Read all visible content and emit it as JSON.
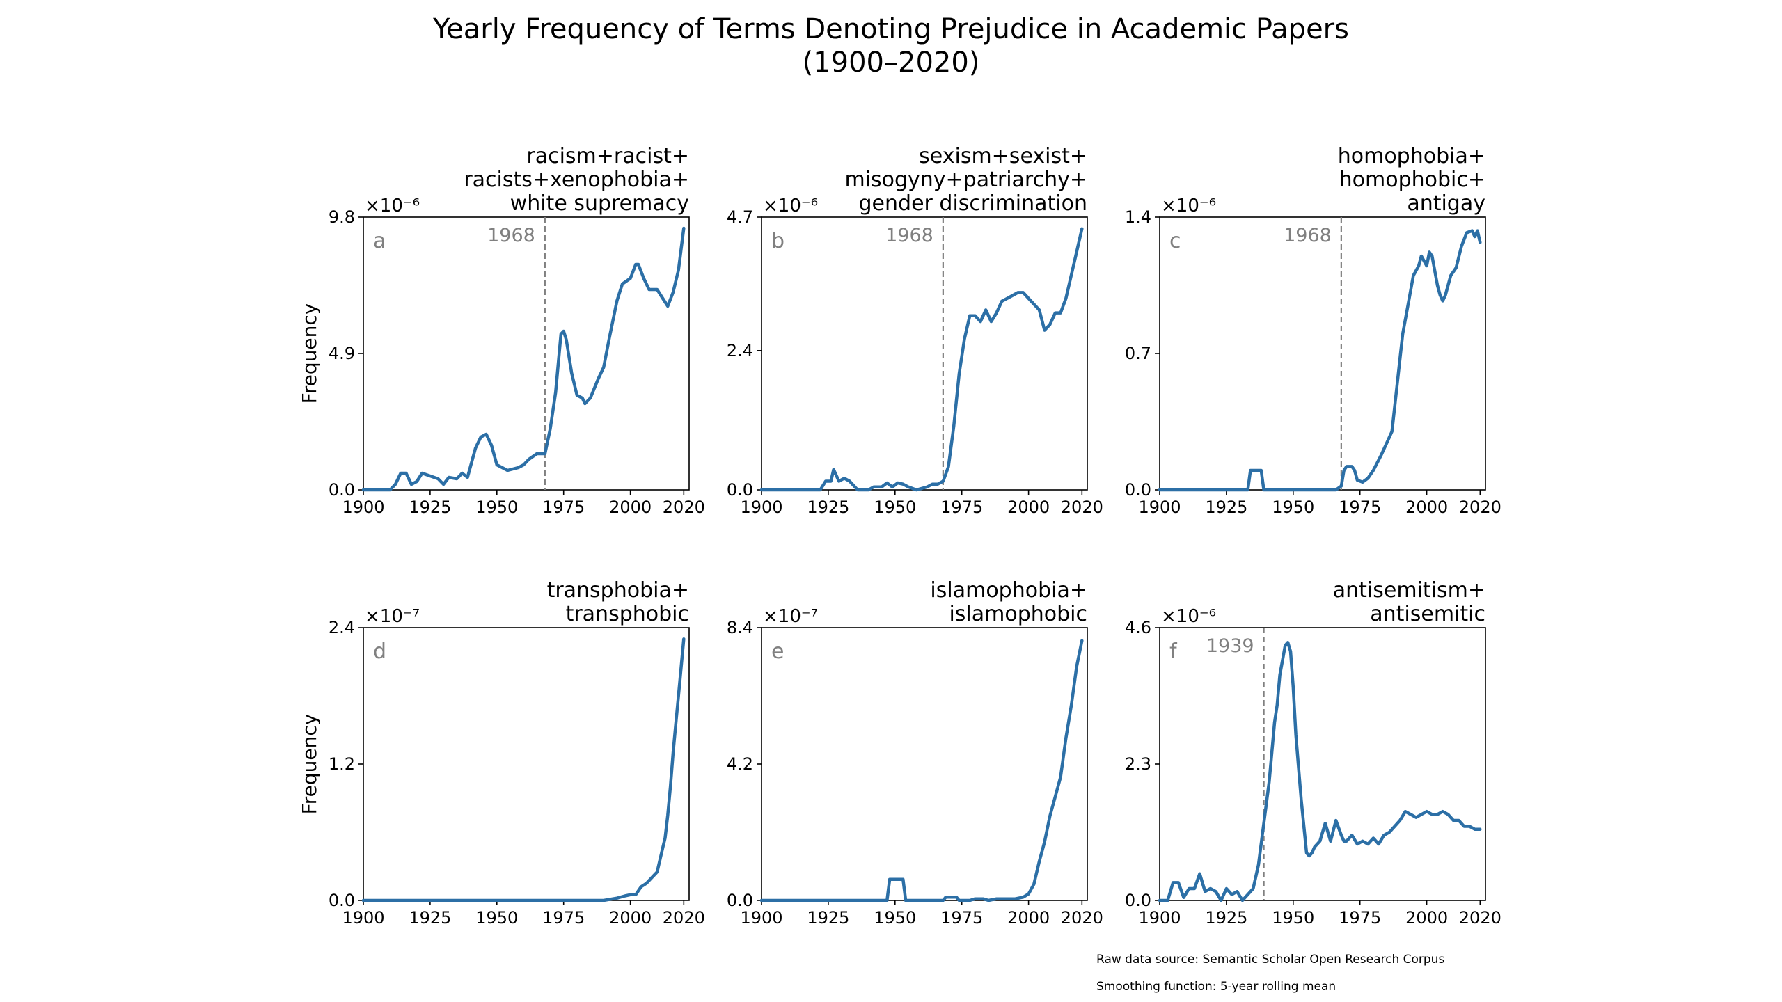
{
  "figure": {
    "title_line1": "Yearly Frequency of Terms Denoting Prejudice in Academic Papers",
    "title_line2": "(1900–2020)",
    "footnote_source": "Raw data source: Semantic Scholar Open Research Corpus",
    "footnote_smoothing": "Smoothing function: 5-year rolling mean"
  },
  "colors": {
    "series": "#2c6fa6",
    "axis": "#000000",
    "annotation": "#808080"
  },
  "chart_data": [
    {
      "type": "line",
      "panel_letter": "a",
      "title_lines": [
        "racism+racist+",
        "racists+xenophobia+",
        "white supremacy"
      ],
      "ylabel": "Frequency",
      "offset_text": "×10⁻⁶",
      "xlim": [
        1900,
        2022
      ],
      "ylim": [
        0,
        9.8
      ],
      "xticks": [
        "1900",
        "1925",
        "1950",
        "1975",
        "2000",
        "2020"
      ],
      "yticks": [
        "0.0",
        "4.9",
        "9.8"
      ],
      "vline": {
        "x": 1968,
        "label": "1968"
      },
      "series": [
        {
          "x": [
            1900,
            1910,
            1912,
            1914,
            1916,
            1918,
            1920,
            1922,
            1925,
            1928,
            1930,
            1932,
            1935,
            1937,
            1939,
            1942,
            1944,
            1946,
            1948,
            1950,
            1952,
            1954,
            1956,
            1958,
            1960,
            1962,
            1965,
            1968,
            1970,
            1972,
            1974,
            1975,
            1976,
            1978,
            1980,
            1982,
            1983,
            1985,
            1988,
            1990,
            1992,
            1995,
            1997,
            2000,
            2002,
            2003,
            2005,
            2007,
            2010,
            2012,
            2014,
            2016,
            2018,
            2020
          ],
          "y": [
            0.0,
            0.0,
            0.2,
            0.6,
            0.6,
            0.2,
            0.3,
            0.6,
            0.5,
            0.4,
            0.2,
            0.45,
            0.4,
            0.6,
            0.45,
            1.5,
            1.9,
            2.0,
            1.6,
            0.9,
            0.8,
            0.7,
            0.75,
            0.8,
            0.9,
            1.1,
            1.3,
            1.3,
            2.2,
            3.5,
            5.6,
            5.7,
            5.4,
            4.2,
            3.4,
            3.3,
            3.1,
            3.3,
            4.0,
            4.4,
            5.4,
            6.8,
            7.4,
            7.6,
            8.1,
            8.1,
            7.6,
            7.2,
            7.2,
            6.9,
            6.6,
            7.1,
            7.9,
            9.4
          ]
        }
      ]
    },
    {
      "type": "line",
      "panel_letter": "b",
      "title_lines": [
        "sexism+sexist+",
        "misogyny+patriarchy+",
        "gender discrimination"
      ],
      "ylabel": "",
      "offset_text": "×10⁻⁶",
      "xlim": [
        1900,
        2022
      ],
      "ylim": [
        0,
        4.7
      ],
      "xticks": [
        "1900",
        "1925",
        "1950",
        "1975",
        "2000",
        "2020"
      ],
      "yticks": [
        "0.0",
        "2.4",
        "4.7"
      ],
      "vline": {
        "x": 1968,
        "label": "1968"
      },
      "series": [
        {
          "x": [
            1900,
            1922,
            1924,
            1926,
            1927,
            1929,
            1931,
            1933,
            1936,
            1940,
            1942,
            1945,
            1947,
            1949,
            1951,
            1953,
            1955,
            1958,
            1962,
            1964,
            1966,
            1968,
            1970,
            1972,
            1974,
            1976,
            1978,
            1980,
            1982,
            1984,
            1986,
            1988,
            1990,
            1992,
            1994,
            1996,
            1998,
            2000,
            2002,
            2004,
            2006,
            2008,
            2010,
            2012,
            2014,
            2016,
            2018,
            2020
          ],
          "y": [
            0.0,
            0.0,
            0.15,
            0.15,
            0.35,
            0.15,
            0.2,
            0.15,
            0.0,
            0.0,
            0.05,
            0.05,
            0.12,
            0.05,
            0.12,
            0.1,
            0.05,
            0.0,
            0.05,
            0.1,
            0.1,
            0.15,
            0.4,
            1.1,
            2.0,
            2.6,
            3.0,
            3.0,
            2.9,
            3.1,
            2.9,
            3.05,
            3.25,
            3.3,
            3.35,
            3.4,
            3.4,
            3.3,
            3.2,
            3.1,
            2.75,
            2.85,
            3.05,
            3.05,
            3.3,
            3.7,
            4.1,
            4.5
          ]
        }
      ]
    },
    {
      "type": "line",
      "panel_letter": "c",
      "title_lines": [
        "homophobia+",
        "homophobic+",
        "antigay"
      ],
      "ylabel": "",
      "offset_text": "×10⁻⁶",
      "xlim": [
        1900,
        2022
      ],
      "ylim": [
        0,
        1.4
      ],
      "xticks": [
        "1900",
        "1925",
        "1950",
        "1975",
        "2000",
        "2020"
      ],
      "yticks": [
        "0.0",
        "0.7",
        "1.4"
      ],
      "vline": {
        "x": 1968,
        "label": "1968"
      },
      "series": [
        {
          "x": [
            1900,
            1933,
            1934,
            1938,
            1939,
            1960,
            1966,
            1968,
            1969,
            1970,
            1972,
            1973,
            1974,
            1976,
            1978,
            1980,
            1983,
            1985,
            1987,
            1989,
            1991,
            1993,
            1995,
            1997,
            1998,
            2000,
            2001,
            2002,
            2004,
            2005,
            2006,
            2007,
            2009,
            2011,
            2013,
            2015,
            2017,
            2018,
            2019,
            2020
          ],
          "y": [
            0.0,
            0.0,
            0.1,
            0.1,
            0.0,
            0.0,
            0.0,
            0.02,
            0.1,
            0.12,
            0.12,
            0.1,
            0.05,
            0.04,
            0.06,
            0.1,
            0.18,
            0.24,
            0.3,
            0.55,
            0.8,
            0.95,
            1.1,
            1.15,
            1.2,
            1.15,
            1.22,
            1.2,
            1.05,
            1.0,
            0.97,
            1.0,
            1.1,
            1.14,
            1.25,
            1.32,
            1.33,
            1.3,
            1.33,
            1.27
          ]
        }
      ]
    },
    {
      "type": "line",
      "panel_letter": "d",
      "title_lines": [
        "transphobia+",
        "transphobic"
      ],
      "ylabel": "Frequency",
      "offset_text": "×10⁻⁷",
      "xlim": [
        1900,
        2022
      ],
      "ylim": [
        0,
        2.4
      ],
      "xticks": [
        "1900",
        "1925",
        "1950",
        "1975",
        "2000",
        "2020"
      ],
      "yticks": [
        "0.0",
        "1.2",
        "2.4"
      ],
      "vline": null,
      "series": [
        {
          "x": [
            1900,
            1990,
            1995,
            1998,
            2000,
            2002,
            2004,
            2006,
            2008,
            2010,
            2012,
            2013,
            2014,
            2015,
            2016,
            2017,
            2018,
            2019,
            2020
          ],
          "y": [
            0.0,
            0.0,
            0.02,
            0.04,
            0.05,
            0.05,
            0.12,
            0.15,
            0.2,
            0.25,
            0.45,
            0.55,
            0.75,
            1.0,
            1.3,
            1.55,
            1.8,
            2.05,
            2.3
          ]
        }
      ]
    },
    {
      "type": "line",
      "panel_letter": "e",
      "title_lines": [
        "islamophobia+",
        "islamophobic"
      ],
      "ylabel": "",
      "offset_text": "×10⁻⁷",
      "xlim": [
        1900,
        2022
      ],
      "ylim": [
        0,
        8.4
      ],
      "xticks": [
        "1900",
        "1925",
        "1950",
        "1975",
        "2000",
        "2020"
      ],
      "yticks": [
        "0.0",
        "4.2",
        "8.4"
      ],
      "vline": null,
      "series": [
        {
          "x": [
            1900,
            1947,
            1948,
            1953,
            1954,
            1968,
            1969,
            1973,
            1974,
            1978,
            1980,
            1983,
            1985,
            1988,
            1990,
            1995,
            1998,
            2000,
            2002,
            2004,
            2006,
            2008,
            2010,
            2012,
            2014,
            2016,
            2018,
            2019,
            2020
          ],
          "y": [
            0.0,
            0.0,
            0.65,
            0.65,
            0.0,
            0.0,
            0.1,
            0.1,
            0.0,
            0.0,
            0.05,
            0.05,
            0.0,
            0.05,
            0.05,
            0.05,
            0.1,
            0.2,
            0.5,
            1.2,
            1.8,
            2.6,
            3.2,
            3.8,
            5.0,
            6.0,
            7.2,
            7.6,
            8.0
          ]
        }
      ]
    },
    {
      "type": "line",
      "panel_letter": "f",
      "title_lines": [
        "antisemitism+",
        "antisemitic"
      ],
      "ylabel": "",
      "offset_text": "×10⁻⁶",
      "xlim": [
        1900,
        2022
      ],
      "ylim": [
        0,
        4.6
      ],
      "xticks": [
        "1900",
        "1925",
        "1950",
        "1975",
        "2000",
        "2020"
      ],
      "yticks": [
        "0.0",
        "2.3",
        "4.6"
      ],
      "vline": {
        "x": 1939,
        "label": "1939"
      },
      "series": [
        {
          "x": [
            1900,
            1903,
            1905,
            1907,
            1909,
            1911,
            1913,
            1915,
            1917,
            1919,
            1921,
            1923,
            1925,
            1927,
            1929,
            1931,
            1933,
            1935,
            1937,
            1939,
            1941,
            1943,
            1944,
            1945,
            1947,
            1948,
            1949,
            1950,
            1951,
            1953,
            1955,
            1956,
            1957,
            1958,
            1960,
            1962,
            1964,
            1966,
            1968,
            1969,
            1970,
            1972,
            1974,
            1976,
            1978,
            1980,
            1982,
            1984,
            1986,
            1988,
            1990,
            1992,
            1994,
            1996,
            1998,
            2000,
            2002,
            2004,
            2006,
            2008,
            2010,
            2012,
            2014,
            2016,
            2018,
            2020
          ],
          "y": [
            0.0,
            0.0,
            0.3,
            0.3,
            0.05,
            0.2,
            0.2,
            0.45,
            0.15,
            0.2,
            0.15,
            0.0,
            0.2,
            0.1,
            0.15,
            0.0,
            0.1,
            0.2,
            0.6,
            1.3,
            2.0,
            3.0,
            3.3,
            3.8,
            4.3,
            4.35,
            4.2,
            3.6,
            2.8,
            1.7,
            0.8,
            0.75,
            0.8,
            0.9,
            1.0,
            1.3,
            1.0,
            1.35,
            1.1,
            1.0,
            1.0,
            1.1,
            0.95,
            1.0,
            0.95,
            1.05,
            0.95,
            1.1,
            1.15,
            1.25,
            1.35,
            1.5,
            1.45,
            1.4,
            1.45,
            1.5,
            1.45,
            1.45,
            1.5,
            1.45,
            1.35,
            1.35,
            1.25,
            1.25,
            1.2,
            1.2
          ]
        }
      ]
    }
  ]
}
